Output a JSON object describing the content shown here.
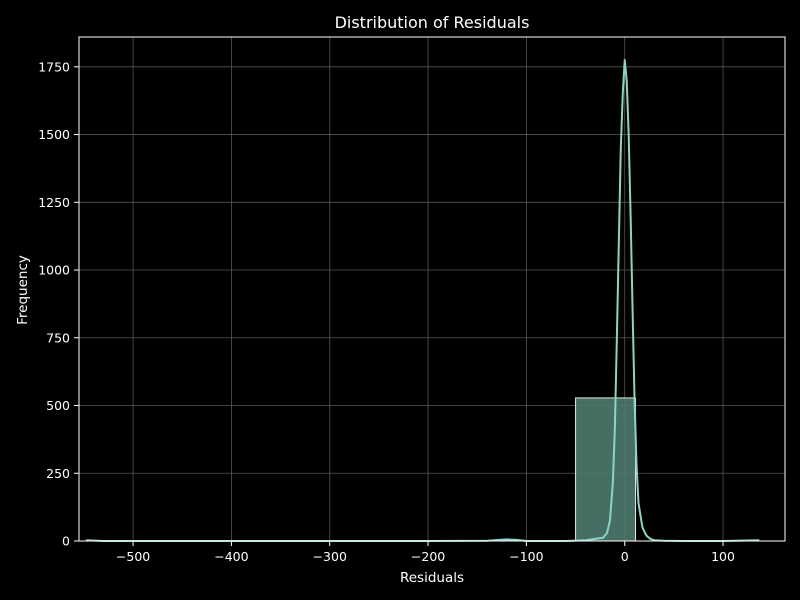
{
  "chart_data": {
    "type": "histogram",
    "title": "Distribution of Residuals",
    "xlabel": "Residuals",
    "ylabel": "Frequency",
    "xlim": [
      -555,
      163
    ],
    "ylim": [
      0,
      1860
    ],
    "x_ticks": [
      -500,
      -400,
      -300,
      -200,
      -100,
      0,
      100
    ],
    "x_tick_labels": [
      "−500",
      "−400",
      "−300",
      "−200",
      "−100",
      "0",
      "100"
    ],
    "y_ticks": [
      0,
      250,
      500,
      750,
      1000,
      1250,
      1500,
      1750
    ],
    "y_tick_labels": [
      "0",
      "250",
      "500",
      "750",
      "1000",
      "1250",
      "1500",
      "1750"
    ],
    "grid": true,
    "bars": [
      {
        "x0": -50,
        "x1": 11,
        "value": 528
      }
    ],
    "kde_line": {
      "x": [
        -547,
        -530,
        -400,
        -300,
        -200,
        -140,
        -120,
        -110,
        -100,
        -60,
        -40,
        -30,
        -22,
        -18,
        -15,
        -12,
        -10,
        -8,
        -6,
        -4,
        -2,
        0,
        2,
        4,
        6,
        8,
        10,
        12,
        14,
        18,
        22,
        26,
        30,
        40,
        60,
        100,
        136
      ],
      "y": [
        3,
        0,
        0,
        0,
        0,
        1,
        6,
        4,
        0,
        0,
        3,
        8,
        12,
        30,
        75,
        220,
        420,
        750,
        1100,
        1450,
        1650,
        1775,
        1700,
        1500,
        1200,
        850,
        520,
        280,
        140,
        50,
        20,
        8,
        3,
        1,
        0,
        0,
        3
      ]
    },
    "colors": {
      "background": "#000000",
      "bar_fill": "#4f7a6d",
      "bar_edge": "#e8e8e8",
      "kde_line": "#8dd3c7",
      "grid": "#555555",
      "axes": "#ffffff"
    }
  }
}
